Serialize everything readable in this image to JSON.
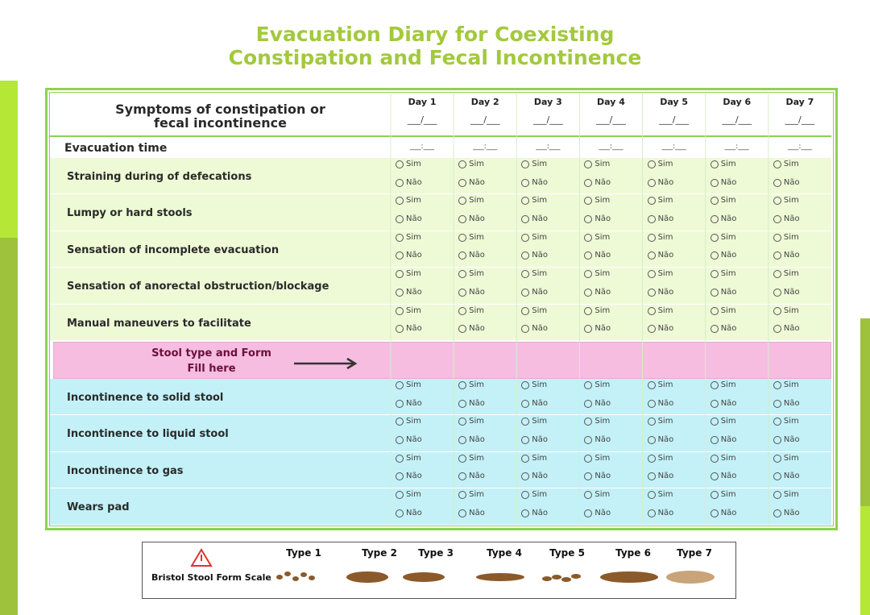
{
  "title": {
    "line1": "Evacuation Diary for Coexisting",
    "line2": "Constipation and Fecal Incontinence"
  },
  "table": {
    "header": [
      "Symptoms of constipation or",
      "fecal incontinence"
    ],
    "days": [
      "Day 1",
      "Day 2",
      "Day 3",
      "Day 4",
      "Day 5",
      "Day 6",
      "Day 7"
    ],
    "date_placeholder": "___/___",
    "time_label": "Evacuation time",
    "time_placeholder": "___:___",
    "options": [
      "Sim",
      "Não"
    ],
    "constipation_rows": [
      "Straining during of defecations",
      "Lumpy or hard stools",
      "Sensation of incomplete evacuation",
      "Sensation of anorectal obstruction/blockage",
      "Manual maneuvers to facilitate"
    ],
    "stool_row": {
      "title": "Stool type and Form",
      "subtitle": "Fill here"
    },
    "incontinence_rows": [
      "Incontinence to solid stool",
      "Incontinence to liquid stool",
      "Incontinence to gas",
      "Wears pad"
    ]
  },
  "bristol": {
    "label": "Bristol Stool Form Scale",
    "types": [
      "Type 1",
      "Type 2",
      "Type 3",
      "Type 4",
      "Type 5",
      "Type 6",
      "Type 7"
    ]
  }
}
